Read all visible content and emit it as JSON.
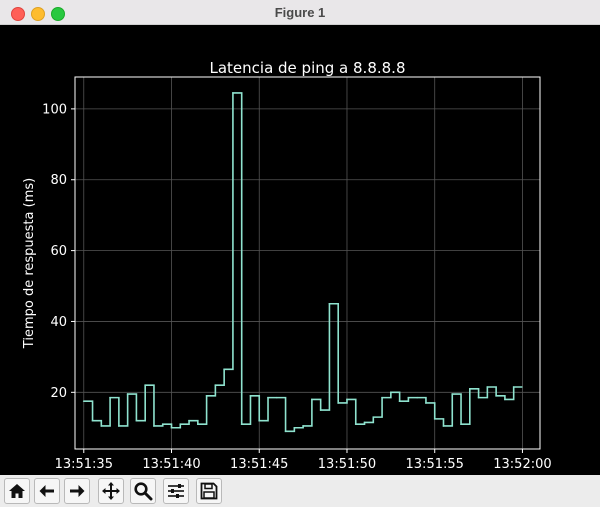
{
  "window": {
    "title": "Figure 1"
  },
  "toolbar": {
    "tools": [
      "home-icon",
      "back-arrow-icon",
      "forward-arrow-icon",
      "pan-icon",
      "zoom-icon",
      "configure-subplots-icon",
      "save-icon"
    ]
  },
  "colors": {
    "line": "#8fe3cf",
    "background": "#000000",
    "axes": "#ffffff",
    "grid": "#555555"
  },
  "chart_data": {
    "type": "line",
    "drawstyle": "steps-post",
    "title": "Latencia de ping a 8.8.8.8",
    "ylabel": "Tiempo de respuesta (ms)",
    "xlabel": "",
    "grid": true,
    "xlim": [
      "13:51:34.5",
      "13:52:01.0"
    ],
    "ylim": [
      4,
      109
    ],
    "x_ticks": [
      "13:51:35",
      "13:51:40",
      "13:51:45",
      "13:51:50",
      "13:51:55",
      "13:52:00"
    ],
    "y_ticks": [
      20,
      40,
      60,
      80,
      100
    ],
    "x": [
      "13:51:35.0",
      "13:51:35.5",
      "13:51:36.0",
      "13:51:36.5",
      "13:51:37.0",
      "13:51:37.5",
      "13:51:38.0",
      "13:51:38.5",
      "13:51:39.0",
      "13:51:39.5",
      "13:51:40.0",
      "13:51:40.5",
      "13:51:41.0",
      "13:51:41.5",
      "13:51:42.0",
      "13:51:42.5",
      "13:51:43.0",
      "13:51:43.5",
      "13:51:44.0",
      "13:51:44.5",
      "13:51:45.0",
      "13:51:45.5",
      "13:51:46.0",
      "13:51:46.5",
      "13:51:47.0",
      "13:51:47.5",
      "13:51:48.0",
      "13:51:48.5",
      "13:51:49.0",
      "13:51:49.5",
      "13:51:50.0",
      "13:51:50.5",
      "13:51:51.0",
      "13:51:51.5",
      "13:51:52.0",
      "13:51:52.5",
      "13:51:53.0",
      "13:51:53.5",
      "13:51:54.0",
      "13:51:54.5",
      "13:51:55.0",
      "13:51:55.5",
      "13:51:56.0",
      "13:51:56.5",
      "13:51:57.0",
      "13:51:57.5",
      "13:51:58.0",
      "13:51:58.5",
      "13:51:59.0",
      "13:51:59.5"
    ],
    "y": [
      17.5,
      12.0,
      10.5,
      18.5,
      10.5,
      19.5,
      12.0,
      22.0,
      10.5,
      11.0,
      10.0,
      11.0,
      12.0,
      11.0,
      19.0,
      22.0,
      26.5,
      104.5,
      11.0,
      19.0,
      12.0,
      18.5,
      18.5,
      9.0,
      10.0,
      10.5,
      18.0,
      15.0,
      45.0,
      17.0,
      18.0,
      11.0,
      11.5,
      13.0,
      18.5,
      20.0,
      17.5,
      18.5,
      18.5,
      17.0,
      12.5,
      10.5,
      19.5,
      11.0,
      21.0,
      18.5,
      21.5,
      19.0,
      18.0,
      21.5
    ]
  }
}
